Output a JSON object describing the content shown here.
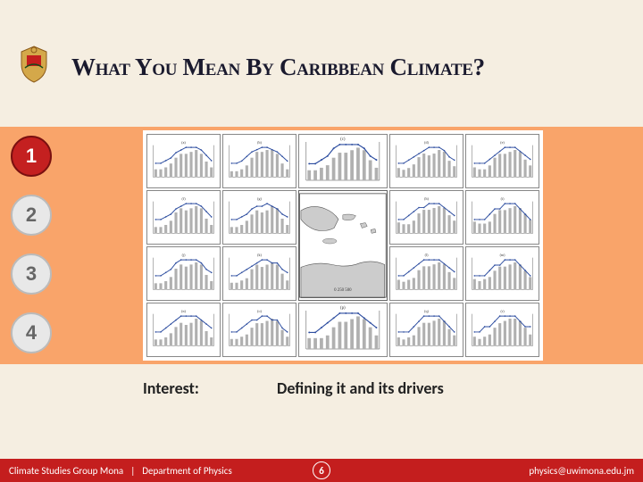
{
  "title": "What You Mean By Caribbean Climate?",
  "nav": {
    "items": [
      {
        "label": "1",
        "active": true
      },
      {
        "label": "2",
        "active": false
      },
      {
        "label": "3",
        "active": false
      },
      {
        "label": "4",
        "active": false
      }
    ]
  },
  "interest": {
    "label": "Interest:",
    "text": "Defining it and its drivers"
  },
  "footer": {
    "group": "Climate Studies Group Mona",
    "dept": "Department of Physics",
    "page": "6",
    "url": "physics@uwimona.edu.jm"
  },
  "figure": {
    "layout": "5-col × 4-row grid; center column rows 2–3 merged for map",
    "panel_count": 18,
    "panel_border_color": "#888888",
    "background": "#ffffff",
    "chart_style": {
      "type": "bar+line",
      "bar_color": "#b0b0b0",
      "bar_width": 0.55,
      "line_color": "#2e4ea0",
      "line_width": 1.2,
      "marker": "circle",
      "marker_size": 2,
      "axis_color": "#444444",
      "tick_fontsize": 4,
      "title_fontsize": 5,
      "grid": false,
      "x_categories": [
        "J",
        "F",
        "M",
        "A",
        "M",
        "J",
        "J",
        "A",
        "S",
        "O",
        "N",
        "D"
      ]
    },
    "panels": [
      {
        "id": "a",
        "row": 1,
        "col": 1,
        "bars": [
          4,
          4,
          5,
          7,
          10,
          12,
          12,
          13,
          14,
          12,
          8,
          5
        ],
        "line": [
          22,
          22,
          23,
          24,
          26,
          27,
          28,
          28,
          28,
          27,
          25,
          23
        ]
      },
      {
        "id": "b",
        "row": 1,
        "col": 2,
        "bars": [
          3,
          3,
          4,
          6,
          10,
          13,
          13,
          14,
          14,
          12,
          7,
          4
        ],
        "line": [
          21,
          21,
          22,
          24,
          26,
          27,
          28,
          28,
          27,
          26,
          24,
          22
        ]
      },
      {
        "id": "c",
        "row": 1,
        "col": 3,
        "bars": [
          4,
          4,
          5,
          6,
          9,
          11,
          11,
          12,
          13,
          12,
          8,
          5
        ],
        "line": [
          23,
          23,
          24,
          25,
          27,
          28,
          28,
          28,
          28,
          27,
          25,
          24
        ]
      },
      {
        "id": "d",
        "row": 1,
        "col": 4,
        "bars": [
          5,
          4,
          5,
          7,
          11,
          13,
          12,
          13,
          15,
          14,
          9,
          6
        ],
        "line": [
          24,
          24,
          25,
          26,
          27,
          28,
          29,
          29,
          29,
          28,
          26,
          25
        ]
      },
      {
        "id": "e",
        "row": 1,
        "col": 5,
        "bars": [
          5,
          4,
          4,
          6,
          10,
          12,
          12,
          13,
          14,
          13,
          9,
          6
        ],
        "line": [
          25,
          25,
          25,
          26,
          27,
          28,
          29,
          29,
          29,
          28,
          27,
          26
        ]
      },
      {
        "id": "f",
        "row": 2,
        "col": 1,
        "bars": [
          3,
          3,
          4,
          6,
          10,
          12,
          11,
          12,
          13,
          12,
          7,
          4
        ],
        "line": [
          22,
          22,
          23,
          24,
          26,
          27,
          28,
          28,
          28,
          27,
          25,
          23
        ]
      },
      {
        "id": "g",
        "row": 2,
        "col": 2,
        "bars": [
          3,
          3,
          4,
          6,
          9,
          11,
          10,
          11,
          13,
          12,
          7,
          4
        ],
        "line": [
          23,
          23,
          24,
          25,
          27,
          28,
          28,
          29,
          28,
          27,
          25,
          24
        ]
      },
      {
        "id": "h",
        "row": 2,
        "col": 4,
        "bars": [
          6,
          5,
          5,
          7,
          11,
          13,
          13,
          14,
          15,
          14,
          10,
          7
        ],
        "line": [
          25,
          25,
          26,
          27,
          28,
          28,
          29,
          29,
          29,
          28,
          27,
          26
        ]
      },
      {
        "id": "i",
        "row": 2,
        "col": 5,
        "bars": [
          6,
          5,
          5,
          6,
          10,
          12,
          12,
          13,
          14,
          13,
          10,
          7
        ],
        "line": [
          26,
          26,
          26,
          27,
          28,
          28,
          29,
          29,
          29,
          28,
          27,
          26
        ]
      },
      {
        "id": "j",
        "row": 3,
        "col": 1,
        "bars": [
          3,
          3,
          4,
          6,
          10,
          12,
          11,
          12,
          13,
          12,
          7,
          4
        ],
        "line": [
          23,
          23,
          24,
          25,
          27,
          28,
          28,
          28,
          28,
          27,
          25,
          24
        ]
      },
      {
        "id": "k",
        "row": 3,
        "col": 2,
        "bars": [
          3,
          3,
          4,
          5,
          9,
          11,
          10,
          11,
          12,
          11,
          7,
          4
        ],
        "line": [
          24,
          24,
          25,
          26,
          27,
          28,
          29,
          29,
          28,
          28,
          26,
          25
        ]
      },
      {
        "id": "l",
        "row": 3,
        "col": 4,
        "bars": [
          5,
          4,
          5,
          6,
          10,
          12,
          12,
          13,
          14,
          13,
          9,
          6
        ],
        "line": [
          25,
          25,
          26,
          27,
          28,
          29,
          29,
          29,
          29,
          28,
          27,
          26
        ]
      },
      {
        "id": "m",
        "row": 3,
        "col": 5,
        "bars": [
          5,
          4,
          5,
          6,
          9,
          11,
          11,
          12,
          13,
          12,
          9,
          6
        ],
        "line": [
          26,
          26,
          26,
          27,
          28,
          28,
          29,
          29,
          29,
          28,
          27,
          26
        ]
      },
      {
        "id": "n",
        "row": 4,
        "col": 1,
        "bars": [
          3,
          3,
          4,
          6,
          9,
          11,
          10,
          11,
          13,
          12,
          7,
          4
        ],
        "line": [
          24,
          24,
          25,
          26,
          27,
          28,
          28,
          28,
          28,
          27,
          26,
          25
        ]
      },
      {
        "id": "o",
        "row": 4,
        "col": 2,
        "bars": [
          3,
          3,
          4,
          5,
          8,
          10,
          10,
          11,
          12,
          11,
          7,
          4
        ],
        "line": [
          25,
          25,
          26,
          27,
          28,
          28,
          29,
          29,
          28,
          28,
          26,
          25
        ]
      },
      {
        "id": "p",
        "row": 4,
        "col": 3,
        "bars": [
          4,
          4,
          4,
          5,
          8,
          10,
          10,
          11,
          12,
          11,
          8,
          5
        ],
        "line": [
          25,
          25,
          26,
          27,
          28,
          29,
          29,
          29,
          29,
          28,
          27,
          26
        ]
      },
      {
        "id": "q",
        "row": 4,
        "col": 4,
        "bars": [
          4,
          3,
          4,
          5,
          9,
          11,
          11,
          12,
          13,
          12,
          8,
          5
        ],
        "line": [
          26,
          26,
          26,
          27,
          28,
          29,
          29,
          29,
          29,
          28,
          27,
          26
        ]
      },
      {
        "id": "r",
        "row": 4,
        "col": 5,
        "bars": [
          4,
          3,
          4,
          5,
          8,
          10,
          11,
          12,
          12,
          11,
          8,
          5
        ],
        "line": [
          26,
          26,
          27,
          27,
          28,
          29,
          29,
          29,
          29,
          28,
          27,
          27
        ]
      }
    ],
    "map": {
      "row_span": "2-3",
      "col": 3,
      "land_color": "#cccccc",
      "coast_color": "#555555",
      "bg": "#ffffff",
      "lat_range": [
        8,
        26
      ],
      "lon_range": [
        -90,
        -58
      ],
      "tick_color": "#444444",
      "scalebar_label": "0  250  500"
    }
  },
  "colors": {
    "page_bg": "#f5eee1",
    "band_bg": "#f9a46a",
    "title_text": "#1a1a2e",
    "circle_active_bg": "#c42020",
    "circle_active_border": "#7a1010",
    "circle_inactive_bg": "#e8e8e8",
    "circle_inactive_border": "#bbbbbb",
    "footer_bg": "#c41e1e"
  }
}
